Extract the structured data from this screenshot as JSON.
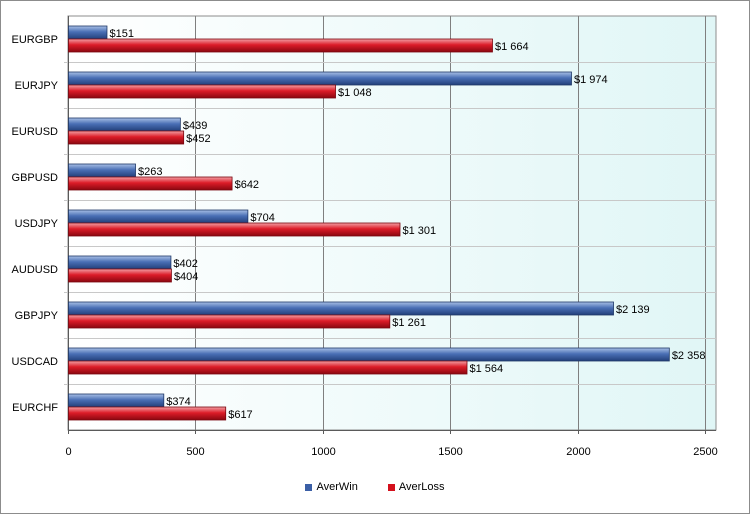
{
  "chart_data": {
    "type": "bar",
    "orientation": "horizontal",
    "categories": [
      "EURGBP",
      "EURJPY",
      "EURUSD",
      "GBPUSD",
      "USDJPY",
      "AUDUSD",
      "GBPJPY",
      "USDCAD",
      "EURCHF"
    ],
    "series": [
      {
        "name": "AverWin",
        "color": "#3b5fa6",
        "values": [
          151,
          1974,
          439,
          263,
          704,
          402,
          2139,
          2358,
          374
        ],
        "labels": [
          "$151",
          "$1 974",
          "$439",
          "$263",
          "$704",
          "$402",
          "$2 139",
          "$2 358",
          "$374"
        ]
      },
      {
        "name": "AverLoss",
        "color": "#d4101c",
        "values": [
          1664,
          1048,
          452,
          642,
          1301,
          404,
          1261,
          1564,
          617
        ],
        "labels": [
          "$1 664",
          "$1 048",
          "$452",
          "$642",
          "$1 301",
          "$404",
          "$1 261",
          "$1 564",
          "$617"
        ]
      }
    ],
    "xlim": [
      0,
      2500
    ],
    "xticks": [
      0,
      500,
      1000,
      1500,
      2000,
      2500
    ],
    "xtick_labels": [
      "0",
      "500",
      "1000",
      "1500",
      "2000",
      "2500"
    ],
    "title": "",
    "xlabel": "",
    "ylabel": "",
    "grid": true,
    "legend_position": "bottom"
  }
}
